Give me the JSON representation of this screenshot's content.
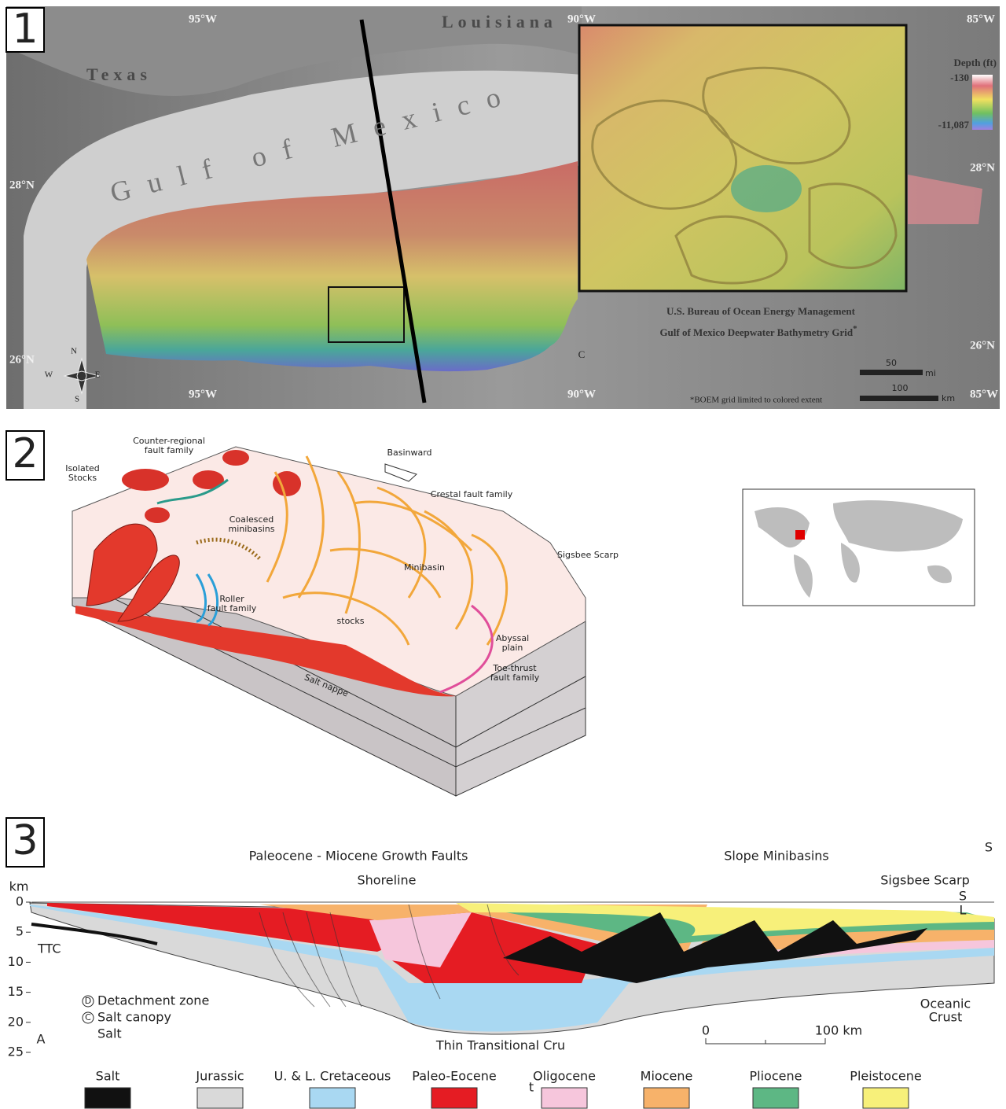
{
  "panel1": {
    "number": "1",
    "places": {
      "louisiana": "Louisiana",
      "texas": "Texas",
      "gulf": "Gulf of Mexico"
    },
    "lon_top": [
      "95°W",
      "90°W",
      "85°W"
    ],
    "lon_bottom": [
      "95°W",
      "90°W",
      "85°W"
    ],
    "lat_left": [
      "28°N",
      "26°N"
    ],
    "lat_right": [
      "28°N",
      "26°N"
    ],
    "compass": {
      "n": "N",
      "e": "E",
      "s": "S",
      "w": "W"
    },
    "depth_legend": {
      "title": "Depth (ft)",
      "top": "-130",
      "bottom": "-11,087"
    },
    "credit": {
      "title": "U.S. Bureau of Ocean Energy Management",
      "subtitle": "Gulf of Mexico Deepwater Bathymetry Grid",
      "mark": "*",
      "note": "*BOEM grid limited to colored extent"
    },
    "inset_marker": "C",
    "scale_bars": [
      {
        "value": "50",
        "unit": "mi"
      },
      {
        "value": "100",
        "unit": "km"
      }
    ]
  },
  "panel2": {
    "number": "2",
    "labels": {
      "counter_regional": [
        "Counter-regional",
        "fault family"
      ],
      "isolated_stocks": [
        "Isolated",
        "Stocks"
      ],
      "basinward": "Basinward",
      "crestal": "Crestal fault family",
      "coalesced": [
        "Coalesced",
        "minibasins"
      ],
      "minibasin": "Minibasin",
      "sigsbee": "Sigsbee Scarp",
      "roller": [
        "Roller",
        "fault family"
      ],
      "stocks": "stocks",
      "abyssal": [
        "Abyssal",
        "plain"
      ],
      "salt_nappe": "Salt nappe",
      "toe_thrust": [
        "Toe-thrust",
        "fault family"
      ]
    }
  },
  "panel3": {
    "number": "3",
    "headers": {
      "growth": "Paleocene - Miocene Growth Faults",
      "slope": "Slope Minibasins",
      "south": "S"
    },
    "shoreline": "Shoreline",
    "sigsbee": "Sigsbee Scarp",
    "depth_axis": {
      "title": "km",
      "ticks": [
        0,
        5,
        10,
        15,
        20,
        25
      ]
    },
    "side_labels": [
      "S",
      "L"
    ],
    "ttc": "TTC",
    "key": [
      {
        "symbol": "D",
        "text": "Detachment zone"
      },
      {
        "symbol": "C",
        "text": "Salt canopy"
      },
      {
        "text": "Salt"
      }
    ],
    "corner": "A",
    "oceanic": [
      "Oceanic",
      "Crust"
    ],
    "thin_crust": "Thin Transitional Cru",
    "distance_scale": [
      "0",
      "100 km"
    ],
    "marker_t": "t",
    "legend": [
      {
        "name": "Salt",
        "color": "#111111"
      },
      {
        "name": "Jurassic",
        "color": "#d9d9d9"
      },
      {
        "name": "U. & L. Cretaceous",
        "color": "#a9d8f2"
      },
      {
        "name": "Paleo-Eocene",
        "color": "#e51c23"
      },
      {
        "name": "Oligocene",
        "color": "#f6c6dc"
      },
      {
        "name": "Miocene",
        "color": "#f7b26a"
      },
      {
        "name": "Pliocene",
        "color": "#5db784"
      },
      {
        "name": "Pleistocene",
        "color": "#f7f07a"
      }
    ]
  }
}
